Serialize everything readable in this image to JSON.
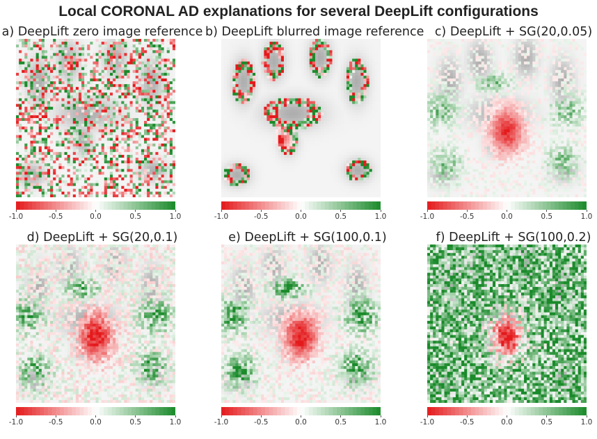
{
  "chart_data": {
    "type": "heatmap",
    "title": "Local CORONAL AD explanations for several DeepLift configurations",
    "colormap": {
      "min": -1.0,
      "max": 1.0,
      "negative_color": "#e41a1c",
      "neutral_color": "#ffffff",
      "positive_color": "#1a8a2a"
    },
    "colorbar_ticks": [
      "-1.0",
      "-0.5",
      "0.0",
      "0.5",
      "1.0"
    ],
    "panels": [
      {
        "id": "a",
        "title": "a) DeepLift zero image reference",
        "pattern": "noise"
      },
      {
        "id": "b",
        "title": "b) DeepLift blurred image reference",
        "pattern": "edges"
      },
      {
        "id": "c",
        "title": "c) DeepLift + SG(20,0.05)",
        "pattern": "smooth_low"
      },
      {
        "id": "d",
        "title": "d) DeepLift + SG(20,0.1)",
        "pattern": "smooth_mid"
      },
      {
        "id": "e",
        "title": "e) DeepLift + SG(100,0.1)",
        "pattern": "smooth_mid2"
      },
      {
        "id": "f",
        "title": "f) DeepLift + SG(100,0.2)",
        "pattern": "smooth_high"
      }
    ]
  }
}
